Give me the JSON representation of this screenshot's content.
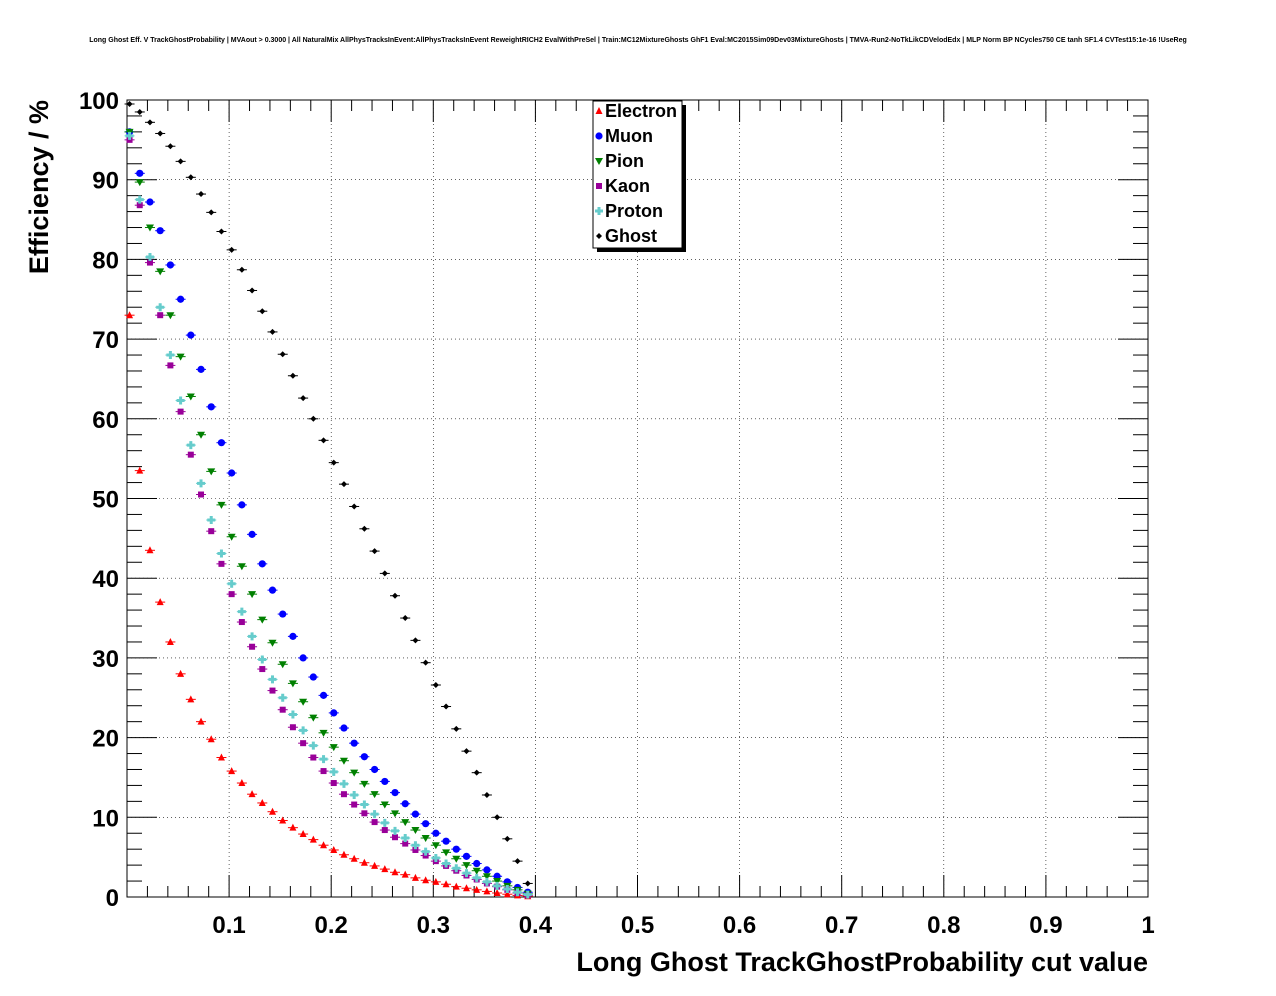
{
  "chart_data": {
    "type": "scatter",
    "title": "Long Ghost Eff. V TrackGhostProbability | MVAout > 0.3000 | All NaturalMix AllPhysTracksInEvent:AllPhysTracksInEvent ReweightRICH2 EvalWithPreSel | Train:MC12MixtureGhosts GhF1 Eval:MC2015Sim09Dev03MixtureGhosts | TMVA-Run2-NoTkLikCDVelodEdx | MLP Norm BP NCycles750 CE tanh SF1.4 CVTest15:1e-16 !UseReg",
    "xlabel": "Long Ghost TrackGhostProbability cut value",
    "ylabel": "Efficiency / %",
    "xlim": [
      0,
      1
    ],
    "ylim": [
      0,
      100
    ],
    "xticks": [
      "0.1",
      "0.2",
      "0.3",
      "0.4",
      "0.5",
      "0.6",
      "0.7",
      "0.8",
      "0.9",
      "1"
    ],
    "yticks": [
      "0",
      "10",
      "20",
      "30",
      "40",
      "50",
      "60",
      "70",
      "80",
      "90",
      "100"
    ],
    "grid": true,
    "legend_position": "top-center",
    "series": [
      {
        "name": "Electron",
        "color": "#ff0000",
        "marker": "triangle-up",
        "x": [
          0.0025,
          0.0125,
          0.0225,
          0.0325,
          0.0425,
          0.0525,
          0.0625,
          0.0725,
          0.0825,
          0.0925,
          0.1025,
          0.1125,
          0.1225,
          0.1325,
          0.1425,
          0.1525,
          0.1625,
          0.1725,
          0.1825,
          0.1925,
          0.2025,
          0.2125,
          0.2225,
          0.2325,
          0.2425,
          0.2525,
          0.2625,
          0.2725,
          0.2825,
          0.2925,
          0.3025,
          0.3125,
          0.3225,
          0.3325,
          0.3425,
          0.3525,
          0.3625,
          0.3725,
          0.3825,
          0.3925
        ],
        "y": [
          73,
          53.5,
          43.5,
          37,
          32,
          28,
          24.8,
          22,
          19.8,
          17.5,
          15.8,
          14.3,
          12.9,
          11.8,
          10.7,
          9.6,
          8.7,
          7.9,
          7.2,
          6.5,
          5.9,
          5.3,
          4.8,
          4.3,
          3.9,
          3.5,
          3.1,
          2.8,
          2.4,
          2.1,
          1.9,
          1.6,
          1.3,
          1.1,
          0.9,
          0.7,
          0.5,
          0.35,
          0.2,
          0.1
        ]
      },
      {
        "name": "Muon",
        "color": "#0000ff",
        "marker": "circle",
        "x": [
          0.0025,
          0.0125,
          0.0225,
          0.0325,
          0.0425,
          0.0525,
          0.0625,
          0.0725,
          0.0825,
          0.0925,
          0.1025,
          0.1125,
          0.1225,
          0.1325,
          0.1425,
          0.1525,
          0.1625,
          0.1725,
          0.1825,
          0.1925,
          0.2025,
          0.2125,
          0.2225,
          0.2325,
          0.2425,
          0.2525,
          0.2625,
          0.2725,
          0.2825,
          0.2925,
          0.3025,
          0.3125,
          0.3225,
          0.3325,
          0.3425,
          0.3525,
          0.3625,
          0.3725,
          0.3825,
          0.3925
        ],
        "y": [
          96,
          90.8,
          87.2,
          83.6,
          79.3,
          75,
          70.5,
          66.2,
          61.5,
          57,
          53.2,
          49.2,
          45.5,
          41.8,
          38.5,
          35.5,
          32.7,
          30,
          27.6,
          25.3,
          23.1,
          21.2,
          19.3,
          17.6,
          16,
          14.5,
          13.1,
          11.7,
          10.4,
          9.2,
          8,
          7,
          6,
          5.1,
          4.2,
          3.4,
          2.6,
          1.9,
          1.2,
          0.6
        ]
      },
      {
        "name": "Pion",
        "color": "#008000",
        "marker": "triangle-down",
        "x": [
          0.0025,
          0.0125,
          0.0225,
          0.0325,
          0.0425,
          0.0525,
          0.0625,
          0.0725,
          0.0825,
          0.0925,
          0.1025,
          0.1125,
          0.1225,
          0.1325,
          0.1425,
          0.1525,
          0.1625,
          0.1725,
          0.1825,
          0.1925,
          0.2025,
          0.2125,
          0.2225,
          0.2325,
          0.2425,
          0.2525,
          0.2625,
          0.2725,
          0.2825,
          0.2925,
          0.3025,
          0.3125,
          0.3225,
          0.3325,
          0.3425,
          0.3525,
          0.3625,
          0.3725,
          0.3825,
          0.3925
        ],
        "y": [
          96,
          89.7,
          84,
          78.5,
          73,
          67.8,
          62.8,
          58,
          53.4,
          49.2,
          45.2,
          41.5,
          38,
          34.8,
          31.9,
          29.2,
          26.8,
          24.5,
          22.5,
          20.6,
          18.8,
          17.1,
          15.6,
          14.2,
          12.9,
          11.6,
          10.5,
          9.4,
          8.4,
          7.4,
          6.5,
          5.6,
          4.8,
          4,
          3.3,
          2.6,
          2,
          1.4,
          0.9,
          0.4
        ]
      },
      {
        "name": "Kaon",
        "color": "#990099",
        "marker": "square",
        "x": [
          0.0025,
          0.0125,
          0.0225,
          0.0325,
          0.0425,
          0.0525,
          0.0625,
          0.0725,
          0.0825,
          0.0925,
          0.1025,
          0.1125,
          0.1225,
          0.1325,
          0.1425,
          0.1525,
          0.1625,
          0.1725,
          0.1825,
          0.1925,
          0.2025,
          0.2125,
          0.2225,
          0.2325,
          0.2425,
          0.2525,
          0.2625,
          0.2725,
          0.2825,
          0.2925,
          0.3025,
          0.3125,
          0.3225,
          0.3325,
          0.3425,
          0.3525,
          0.3625,
          0.3725,
          0.3825,
          0.3925
        ],
        "y": [
          95,
          86.8,
          79.6,
          73,
          66.7,
          60.9,
          55.5,
          50.5,
          45.9,
          41.8,
          38,
          34.5,
          31.4,
          28.6,
          25.9,
          23.5,
          21.3,
          19.3,
          17.5,
          15.8,
          14.3,
          12.9,
          11.6,
          10.5,
          9.4,
          8.4,
          7.5,
          6.7,
          5.9,
          5.2,
          4.5,
          3.9,
          3.3,
          2.7,
          2.2,
          1.7,
          1.3,
          0.9,
          0.5,
          0.2
        ]
      },
      {
        "name": "Proton",
        "color": "#66cccc",
        "marker": "cross",
        "x": [
          0.0025,
          0.0125,
          0.0225,
          0.0325,
          0.0425,
          0.0525,
          0.0625,
          0.0725,
          0.0825,
          0.0925,
          0.1025,
          0.1125,
          0.1225,
          0.1325,
          0.1425,
          0.1525,
          0.1625,
          0.1725,
          0.1825,
          0.1925,
          0.2025,
          0.2125,
          0.2225,
          0.2325,
          0.2425,
          0.2525,
          0.2625,
          0.2725,
          0.2825,
          0.2925,
          0.3025,
          0.3125,
          0.3225,
          0.3325,
          0.3425,
          0.3525,
          0.3625,
          0.3725,
          0.3825,
          0.3925
        ],
        "y": [
          95.5,
          87.5,
          80.3,
          74,
          68,
          62.3,
          56.7,
          51.9,
          47.3,
          43.1,
          39.3,
          35.8,
          32.7,
          29.8,
          27.3,
          25,
          22.9,
          20.9,
          19,
          17.3,
          15.7,
          14.2,
          12.8,
          11.6,
          10.4,
          9.3,
          8.3,
          7.4,
          6.5,
          5.7,
          4.9,
          4.2,
          3.6,
          3,
          2.4,
          1.9,
          1.4,
          1,
          0.6,
          0.3
        ]
      },
      {
        "name": "Ghost",
        "color": "#000000",
        "marker": "star",
        "x": [
          0.0025,
          0.0125,
          0.0225,
          0.0325,
          0.0425,
          0.0525,
          0.0625,
          0.0725,
          0.0825,
          0.0925,
          0.1025,
          0.1125,
          0.1225,
          0.1325,
          0.1425,
          0.1525,
          0.1625,
          0.1725,
          0.1825,
          0.1925,
          0.2025,
          0.2125,
          0.2225,
          0.2325,
          0.2425,
          0.2525,
          0.2625,
          0.2725,
          0.2825,
          0.2925,
          0.3025,
          0.3125,
          0.3225,
          0.3325,
          0.3425,
          0.3525,
          0.3625,
          0.3725,
          0.3825,
          0.3925
        ],
        "y": [
          99.5,
          98.5,
          97.2,
          95.8,
          94.2,
          92.3,
          90.3,
          88.2,
          85.9,
          83.5,
          81.2,
          78.7,
          76.1,
          73.5,
          70.9,
          68.1,
          65.4,
          62.6,
          60,
          57.3,
          54.5,
          51.8,
          49,
          46.2,
          43.4,
          40.6,
          37.8,
          35,
          32.2,
          29.4,
          26.6,
          23.9,
          21.1,
          18.3,
          15.6,
          12.8,
          10,
          7.3,
          4.5,
          1.7
        ]
      }
    ]
  }
}
